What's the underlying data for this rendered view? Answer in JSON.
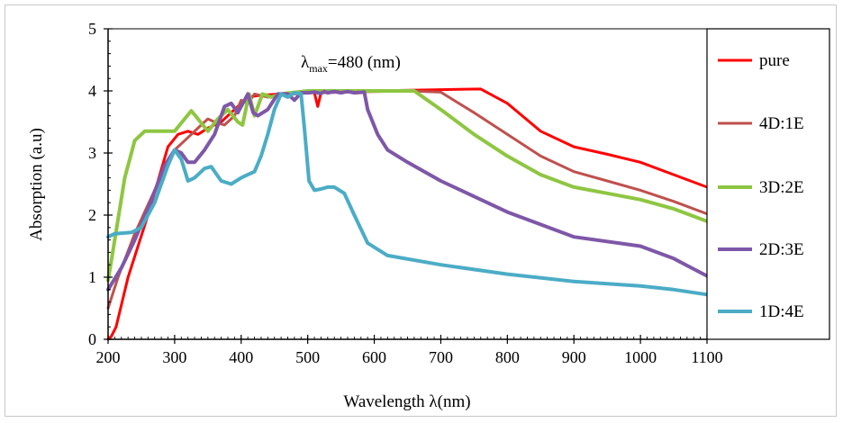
{
  "chart_data": {
    "type": "line",
    "title": "",
    "xlabel": "Wavelength λ(nm)",
    "ylabel": "Absorption (a.u)",
    "xlim": [
      200,
      1100
    ],
    "ylim": [
      0,
      5
    ],
    "x_ticks": [
      200,
      300,
      400,
      500,
      600,
      700,
      800,
      900,
      1000,
      1100
    ],
    "y_ticks": [
      0,
      1,
      2,
      3,
      4,
      5
    ],
    "grid": false,
    "legend_position": "right",
    "annotation": {
      "symbol": "λ",
      "subscript": "max",
      "text": "=480 (nm)"
    },
    "series": [
      {
        "name": "pure",
        "color": "#ff0000",
        "points": [
          [
            200,
            0
          ],
          [
            205,
            0.05
          ],
          [
            212,
            0.2
          ],
          [
            230,
            1.0
          ],
          [
            260,
            2.0
          ],
          [
            290,
            3.1
          ],
          [
            305,
            3.3
          ],
          [
            320,
            3.35
          ],
          [
            335,
            3.3
          ],
          [
            350,
            3.4
          ],
          [
            370,
            3.5
          ],
          [
            390,
            3.7
          ],
          [
            410,
            3.9
          ],
          [
            430,
            3.93
          ],
          [
            460,
            3.95
          ],
          [
            490,
            3.97
          ],
          [
            510,
            3.97
          ],
          [
            515,
            3.75
          ],
          [
            520,
            3.97
          ],
          [
            600,
            4.0
          ],
          [
            700,
            4.02
          ],
          [
            760,
            4.03
          ],
          [
            800,
            3.8
          ],
          [
            850,
            3.35
          ],
          [
            900,
            3.1
          ],
          [
            950,
            2.98
          ],
          [
            1000,
            2.85
          ],
          [
            1050,
            2.65
          ],
          [
            1100,
            2.45
          ]
        ]
      },
      {
        "name": "4D:1E",
        "color": "#c0504d",
        "points": [
          [
            200,
            0.5
          ],
          [
            215,
            1.0
          ],
          [
            240,
            1.7
          ],
          [
            270,
            2.4
          ],
          [
            300,
            3.05
          ],
          [
            320,
            3.25
          ],
          [
            340,
            3.45
          ],
          [
            350,
            3.55
          ],
          [
            360,
            3.5
          ],
          [
            375,
            3.45
          ],
          [
            390,
            3.6
          ],
          [
            400,
            3.85
          ],
          [
            410,
            3.8
          ],
          [
            420,
            3.95
          ],
          [
            440,
            3.9
          ],
          [
            460,
            3.93
          ],
          [
            500,
            3.97
          ],
          [
            550,
            3.98
          ],
          [
            600,
            3.99
          ],
          [
            650,
            4.0
          ],
          [
            700,
            3.98
          ],
          [
            750,
            3.65
          ],
          [
            800,
            3.3
          ],
          [
            850,
            2.95
          ],
          [
            900,
            2.7
          ],
          [
            950,
            2.55
          ],
          [
            1000,
            2.4
          ],
          [
            1050,
            2.22
          ],
          [
            1100,
            2.02
          ]
        ]
      },
      {
        "name": "3D:2E",
        "color": "#8ec641",
        "points": [
          [
            200,
            0.95
          ],
          [
            210,
            1.6
          ],
          [
            225,
            2.6
          ],
          [
            240,
            3.2
          ],
          [
            255,
            3.35
          ],
          [
            270,
            3.35
          ],
          [
            300,
            3.35
          ],
          [
            315,
            3.55
          ],
          [
            325,
            3.68
          ],
          [
            335,
            3.55
          ],
          [
            350,
            3.35
          ],
          [
            365,
            3.55
          ],
          [
            380,
            3.7
          ],
          [
            395,
            3.5
          ],
          [
            402,
            3.45
          ],
          [
            412,
            3.95
          ],
          [
            420,
            3.6
          ],
          [
            432,
            3.95
          ],
          [
            445,
            3.9
          ],
          [
            460,
            3.95
          ],
          [
            500,
            4.0
          ],
          [
            600,
            4.0
          ],
          [
            660,
            4.0
          ],
          [
            700,
            3.7
          ],
          [
            750,
            3.3
          ],
          [
            800,
            2.95
          ],
          [
            850,
            2.65
          ],
          [
            900,
            2.45
          ],
          [
            950,
            2.35
          ],
          [
            1000,
            2.25
          ],
          [
            1050,
            2.1
          ],
          [
            1100,
            1.9
          ]
        ]
      },
      {
        "name": "2D:3E",
        "color": "#7e57a8",
        "points": [
          [
            200,
            0.8
          ],
          [
            220,
            1.15
          ],
          [
            240,
            1.6
          ],
          [
            260,
            2.1
          ],
          [
            285,
            2.8
          ],
          [
            300,
            3.05
          ],
          [
            310,
            3.0
          ],
          [
            320,
            2.85
          ],
          [
            330,
            2.85
          ],
          [
            345,
            3.05
          ],
          [
            360,
            3.3
          ],
          [
            375,
            3.75
          ],
          [
            385,
            3.8
          ],
          [
            395,
            3.65
          ],
          [
            410,
            3.95
          ],
          [
            418,
            3.65
          ],
          [
            425,
            3.6
          ],
          [
            440,
            3.7
          ],
          [
            455,
            3.95
          ],
          [
            470,
            3.95
          ],
          [
            480,
            3.85
          ],
          [
            490,
            3.97
          ],
          [
            500,
            3.97
          ],
          [
            510,
            3.98
          ],
          [
            520,
            3.96
          ],
          [
            525,
            3.99
          ],
          [
            530,
            3.97
          ],
          [
            540,
            3.99
          ],
          [
            550,
            3.97
          ],
          [
            560,
            3.99
          ],
          [
            570,
            3.97
          ],
          [
            585,
            3.98
          ],
          [
            590,
            3.7
          ],
          [
            605,
            3.3
          ],
          [
            620,
            3.05
          ],
          [
            650,
            2.85
          ],
          [
            700,
            2.55
          ],
          [
            800,
            2.05
          ],
          [
            900,
            1.65
          ],
          [
            1000,
            1.5
          ],
          [
            1050,
            1.3
          ],
          [
            1100,
            1.02
          ]
        ]
      },
      {
        "name": "1D:4E",
        "color": "#4bacc6",
        "points": [
          [
            200,
            1.65
          ],
          [
            210,
            1.7
          ],
          [
            235,
            1.72
          ],
          [
            250,
            1.8
          ],
          [
            270,
            2.2
          ],
          [
            290,
            2.8
          ],
          [
            300,
            3.05
          ],
          [
            310,
            2.9
          ],
          [
            320,
            2.55
          ],
          [
            330,
            2.6
          ],
          [
            345,
            2.75
          ],
          [
            355,
            2.78
          ],
          [
            370,
            2.55
          ],
          [
            385,
            2.5
          ],
          [
            400,
            2.6
          ],
          [
            410,
            2.65
          ],
          [
            420,
            2.7
          ],
          [
            430,
            2.95
          ],
          [
            440,
            3.3
          ],
          [
            450,
            3.7
          ],
          [
            460,
            3.95
          ],
          [
            470,
            3.9
          ],
          [
            480,
            3.97
          ],
          [
            490,
            3.95
          ],
          [
            495,
            3.4
          ],
          [
            502,
            2.55
          ],
          [
            510,
            2.4
          ],
          [
            520,
            2.42
          ],
          [
            530,
            2.45
          ],
          [
            540,
            2.45
          ],
          [
            555,
            2.35
          ],
          [
            570,
            2.0
          ],
          [
            590,
            1.55
          ],
          [
            620,
            1.35
          ],
          [
            700,
            1.2
          ],
          [
            800,
            1.05
          ],
          [
            900,
            0.93
          ],
          [
            1000,
            0.86
          ],
          [
            1050,
            0.8
          ],
          [
            1100,
            0.72
          ]
        ]
      }
    ]
  }
}
